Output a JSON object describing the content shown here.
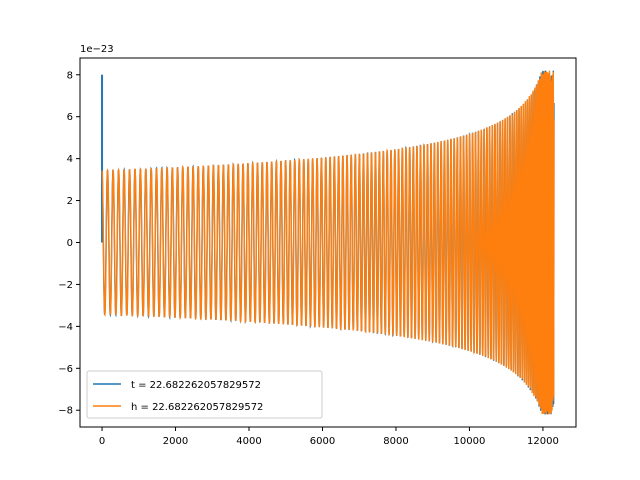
{
  "chart_data": {
    "type": "line",
    "title": "",
    "xlabel": "",
    "ylabel": "",
    "y_offset_label": "1e−23",
    "xlim": [
      -600,
      12900
    ],
    "ylim": [
      -8.8,
      8.8
    ],
    "xticks": [
      0,
      2000,
      4000,
      6000,
      8000,
      10000,
      12000
    ],
    "yticks": [
      -8,
      -6,
      -4,
      -2,
      0,
      2,
      4,
      6,
      8
    ],
    "xtick_labels": [
      "0",
      "2000",
      "4000",
      "6000",
      "8000",
      "10000",
      "12000"
    ],
    "ytick_labels": [
      "−8",
      "−6",
      "−4",
      "−2",
      "0",
      "2",
      "4",
      "6",
      "8"
    ],
    "grid": false,
    "legend_position": "lower-left",
    "series": [
      {
        "name": "t = 22.682262057829572",
        "color": "#1f77b4",
        "description_points": {
          "spike_at_x0": 8.0,
          "x_end": 12300,
          "envelope_start": 3.5,
          "envelope_end": 8.2
        }
      },
      {
        "name": "h = 22.682262057829572",
        "color": "#ff7f0e",
        "description_points": {
          "x_start": 0,
          "x_end": 12300,
          "envelope_start": 3.5,
          "envelope_end": 8.2
        }
      }
    ]
  }
}
